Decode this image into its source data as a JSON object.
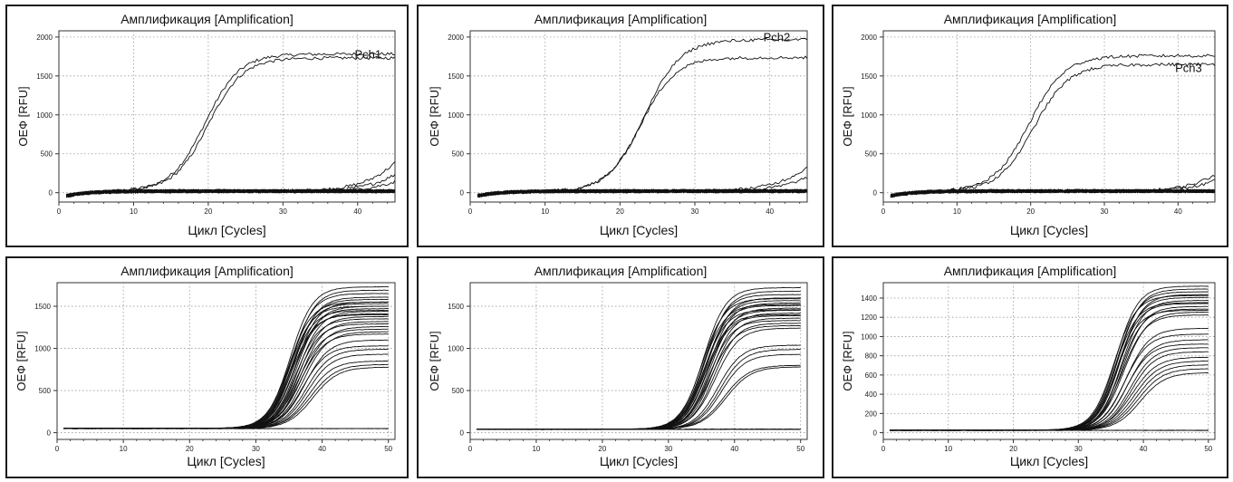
{
  "chart_data": [
    {
      "type": "line",
      "title": "Амплификация [Amplification]",
      "xlabel": "Цикл [Cycles]",
      "ylabel": "ОЕФ [RFU]",
      "xlim": [
        0,
        45
      ],
      "ylim": [
        -120,
        2080
      ],
      "xticks": [
        0,
        10,
        20,
        30,
        40
      ],
      "yticks": [
        0,
        500,
        1000,
        1500,
        2000
      ],
      "grid": true,
      "series_label": "Pch1",
      "curves": [
        {
          "plateau": 1760,
          "midpoint": 19.6,
          "slope": 2.3,
          "count": 1
        },
        {
          "plateau": 1710,
          "midpoint": 20.0,
          "slope": 2.3,
          "count": 1
        },
        {
          "plateau": 1200,
          "midpoint": 47.5,
          "slope": 3.0,
          "count": 1
        },
        {
          "plateau": 900,
          "midpoint": 48.5,
          "slope": 3.0,
          "count": 1
        },
        {
          "plateau": 600,
          "midpoint": 49.0,
          "slope": 3.0,
          "count": 1
        },
        {
          "plateau": 0,
          "midpoint": 50,
          "slope": 3,
          "count": 30
        }
      ],
      "baseline_noise": 40
    },
    {
      "type": "line",
      "title": "Амплификация [Amplification]",
      "xlabel": "Цикл [Cycles]",
      "ylabel": "ОЕФ [RFU]",
      "xlim": [
        0,
        45
      ],
      "ylim": [
        -120,
        2080
      ],
      "xticks": [
        0,
        10,
        20,
        30,
        40
      ],
      "yticks": [
        0,
        500,
        1000,
        1500,
        2000
      ],
      "grid": true,
      "series_label": "Pch2",
      "curves": [
        {
          "plateau": 1950,
          "midpoint": 23.3,
          "slope": 2.4,
          "count": 1
        },
        {
          "plateau": 1720,
          "midpoint": 22.8,
          "slope": 2.3,
          "count": 1
        },
        {
          "plateau": 800,
          "midpoint": 46.5,
          "slope": 3.0,
          "count": 1
        },
        {
          "plateau": 600,
          "midpoint": 47.5,
          "slope": 3.0,
          "count": 1
        },
        {
          "plateau": 0,
          "midpoint": 50,
          "slope": 3,
          "count": 30
        }
      ],
      "baseline_noise": 40
    },
    {
      "type": "line",
      "title": "Амплификация [Amplification]",
      "xlabel": "Цикл [Cycles]",
      "ylabel": "ОЕФ [RFU]",
      "xlim": [
        0,
        45
      ],
      "ylim": [
        -120,
        2080
      ],
      "xticks": [
        0,
        10,
        20,
        30,
        40
      ],
      "yticks": [
        0,
        500,
        1000,
        1500,
        2000
      ],
      "grid": true,
      "series_label": "Pch3",
      "curves": [
        {
          "plateau": 1740,
          "midpoint": 19.8,
          "slope": 2.4,
          "count": 1
        },
        {
          "plateau": 1630,
          "midpoint": 20.4,
          "slope": 2.4,
          "count": 1
        },
        {
          "plateau": 700,
          "midpoint": 47.5,
          "slope": 3.0,
          "count": 1
        },
        {
          "plateau": 500,
          "midpoint": 48.0,
          "slope": 3.0,
          "count": 1
        },
        {
          "plateau": 0,
          "midpoint": 50,
          "slope": 3,
          "count": 30
        }
      ],
      "baseline_noise": 40
    },
    {
      "type": "line",
      "title": "Амплификация [Amplification]",
      "xlabel": "Цикл [Cycles]",
      "ylabel": "ОЕФ [RFU]",
      "xlim": [
        0,
        51
      ],
      "ylim": [
        -80,
        1780
      ],
      "xticks": [
        0,
        10,
        20,
        30,
        40,
        50
      ],
      "yticks": [
        0,
        500,
        1000,
        1500
      ],
      "grid": true,
      "series_label": "",
      "curves": [
        {
          "plateau": 1680,
          "midpoint": 35.2,
          "slope": 1.7,
          "count": 1
        },
        {
          "plateau": 1640,
          "midpoint": 35.5,
          "slope": 1.7,
          "count": 1
        },
        {
          "plateau": 1600,
          "midpoint": 35.3,
          "slope": 1.7,
          "count": 1
        },
        {
          "plateau": 1560,
          "midpoint": 35.8,
          "slope": 1.7,
          "count": 1
        },
        {
          "plateau": 1530,
          "midpoint": 35.6,
          "slope": 1.7,
          "count": 1
        },
        {
          "plateau": 1500,
          "midpoint": 36.0,
          "slope": 1.7,
          "count": 1
        },
        {
          "plateau": 1480,
          "midpoint": 35.4,
          "slope": 1.7,
          "count": 1
        },
        {
          "plateau": 1450,
          "midpoint": 36.2,
          "slope": 1.7,
          "count": 1
        },
        {
          "plateau": 1420,
          "midpoint": 35.9,
          "slope": 1.7,
          "count": 1
        },
        {
          "plateau": 1390,
          "midpoint": 36.4,
          "slope": 1.7,
          "count": 1
        },
        {
          "plateau": 1360,
          "midpoint": 35.7,
          "slope": 1.7,
          "count": 1
        },
        {
          "plateau": 1330,
          "midpoint": 36.6,
          "slope": 1.7,
          "count": 1
        },
        {
          "plateau": 1300,
          "midpoint": 36.1,
          "slope": 1.7,
          "count": 1
        },
        {
          "plateau": 1270,
          "midpoint": 36.8,
          "slope": 1.7,
          "count": 1
        },
        {
          "plateau": 1240,
          "midpoint": 36.3,
          "slope": 1.7,
          "count": 1
        },
        {
          "plateau": 1210,
          "midpoint": 37.0,
          "slope": 1.8,
          "count": 1
        },
        {
          "plateau": 1180,
          "midpoint": 36.5,
          "slope": 1.8,
          "count": 1
        },
        {
          "plateau": 1150,
          "midpoint": 37.2,
          "slope": 1.8,
          "count": 1
        },
        {
          "plateau": 1120,
          "midpoint": 36.7,
          "slope": 1.8,
          "count": 1
        },
        {
          "plateau": 1050,
          "midpoint": 37.4,
          "slope": 1.8,
          "count": 1
        },
        {
          "plateau": 980,
          "midpoint": 37.1,
          "slope": 1.8,
          "count": 1
        },
        {
          "plateau": 940,
          "midpoint": 37.6,
          "slope": 1.8,
          "count": 1
        },
        {
          "plateau": 880,
          "midpoint": 37.8,
          "slope": 1.8,
          "count": 1
        },
        {
          "plateau": 800,
          "midpoint": 38.0,
          "slope": 1.8,
          "count": 1
        },
        {
          "plateau": 760,
          "midpoint": 38.3,
          "slope": 1.9,
          "count": 1
        },
        {
          "plateau": 730,
          "midpoint": 38.6,
          "slope": 1.9,
          "count": 1
        },
        {
          "plateau": 1500,
          "midpoint": 35.0,
          "slope": 1.7,
          "count": 1
        },
        {
          "plateau": 1450,
          "midpoint": 35.1,
          "slope": 1.7,
          "count": 1
        },
        {
          "plateau": 1400,
          "midpoint": 35.3,
          "slope": 1.7,
          "count": 1
        },
        {
          "plateau": 1350,
          "midpoint": 35.4,
          "slope": 1.7,
          "count": 1
        },
        {
          "plateau": 0,
          "midpoint": 60,
          "slope": 3,
          "count": 3
        }
      ],
      "baseline_noise": 4,
      "baseline_offset": 50
    },
    {
      "type": "line",
      "title": "Амплификация [Amplification]",
      "xlabel": "Цикл [Cycles]",
      "ylabel": "ОЕФ [RFU]",
      "xlim": [
        0,
        51
      ],
      "ylim": [
        -80,
        1780
      ],
      "xticks": [
        0,
        10,
        20,
        30,
        40,
        50
      ],
      "yticks": [
        0,
        500,
        1000,
        1500
      ],
      "grid": true,
      "series_label": "",
      "curves": [
        {
          "plateau": 1680,
          "midpoint": 35.3,
          "slope": 1.7,
          "count": 1
        },
        {
          "plateau": 1640,
          "midpoint": 35.6,
          "slope": 1.7,
          "count": 1
        },
        {
          "plateau": 1600,
          "midpoint": 35.4,
          "slope": 1.7,
          "count": 1
        },
        {
          "plateau": 1560,
          "midpoint": 35.9,
          "slope": 1.7,
          "count": 1
        },
        {
          "plateau": 1530,
          "midpoint": 35.7,
          "slope": 1.7,
          "count": 1
        },
        {
          "plateau": 1500,
          "midpoint": 36.1,
          "slope": 1.7,
          "count": 1
        },
        {
          "plateau": 1470,
          "midpoint": 35.5,
          "slope": 1.7,
          "count": 1
        },
        {
          "plateau": 1440,
          "midpoint": 36.3,
          "slope": 1.7,
          "count": 1
        },
        {
          "plateau": 1410,
          "midpoint": 36.0,
          "slope": 1.7,
          "count": 1
        },
        {
          "plateau": 1380,
          "midpoint": 36.5,
          "slope": 1.7,
          "count": 1
        },
        {
          "plateau": 1350,
          "midpoint": 35.8,
          "slope": 1.7,
          "count": 1
        },
        {
          "plateau": 1320,
          "midpoint": 36.7,
          "slope": 1.7,
          "count": 1
        },
        {
          "plateau": 1290,
          "midpoint": 36.2,
          "slope": 1.7,
          "count": 1
        },
        {
          "plateau": 1260,
          "midpoint": 36.9,
          "slope": 1.7,
          "count": 1
        },
        {
          "plateau": 1230,
          "midpoint": 36.4,
          "slope": 1.8,
          "count": 1
        },
        {
          "plateau": 1200,
          "midpoint": 37.1,
          "slope": 1.8,
          "count": 1
        },
        {
          "plateau": 1000,
          "midpoint": 37.5,
          "slope": 1.8,
          "count": 1
        },
        {
          "plateau": 950,
          "midpoint": 37.8,
          "slope": 1.8,
          "count": 1
        },
        {
          "plateau": 890,
          "midpoint": 38.0,
          "slope": 1.8,
          "count": 1
        },
        {
          "plateau": 760,
          "midpoint": 38.4,
          "slope": 1.9,
          "count": 1
        },
        {
          "plateau": 740,
          "midpoint": 38.7,
          "slope": 1.9,
          "count": 1
        },
        {
          "plateau": 1550,
          "midpoint": 35.1,
          "slope": 1.7,
          "count": 1
        },
        {
          "plateau": 1480,
          "midpoint": 35.2,
          "slope": 1.7,
          "count": 1
        },
        {
          "plateau": 1420,
          "midpoint": 35.4,
          "slope": 1.7,
          "count": 1
        },
        {
          "plateau": 1360,
          "midpoint": 35.6,
          "slope": 1.7,
          "count": 1
        },
        {
          "plateau": 0,
          "midpoint": 60,
          "slope": 3,
          "count": 3
        }
      ],
      "baseline_noise": 4,
      "baseline_offset": 40
    },
    {
      "type": "line",
      "title": "Амплификация [Amplification]",
      "xlabel": "Цикл [Cycles]",
      "ylabel": "ОЕФ [RFU]",
      "xlim": [
        0,
        51
      ],
      "ylim": [
        -70,
        1560
      ],
      "xticks": [
        0,
        10,
        20,
        30,
        40,
        50
      ],
      "yticks": [
        0,
        200,
        400,
        600,
        800,
        1000,
        1200,
        1400
      ],
      "grid": true,
      "series_label": "",
      "curves": [
        {
          "plateau": 1500,
          "midpoint": 35.8,
          "slope": 1.7,
          "count": 1
        },
        {
          "plateau": 1470,
          "midpoint": 36.1,
          "slope": 1.7,
          "count": 1
        },
        {
          "plateau": 1440,
          "midpoint": 35.9,
          "slope": 1.7,
          "count": 1
        },
        {
          "plateau": 1410,
          "midpoint": 36.4,
          "slope": 1.7,
          "count": 1
        },
        {
          "plateau": 1380,
          "midpoint": 36.2,
          "slope": 1.7,
          "count": 1
        },
        {
          "plateau": 1350,
          "midpoint": 36.6,
          "slope": 1.7,
          "count": 1
        },
        {
          "plateau": 1320,
          "midpoint": 36.0,
          "slope": 1.7,
          "count": 1
        },
        {
          "plateau": 1290,
          "midpoint": 36.8,
          "slope": 1.7,
          "count": 1
        },
        {
          "plateau": 1260,
          "midpoint": 36.5,
          "slope": 1.7,
          "count": 1
        },
        {
          "plateau": 1230,
          "midpoint": 37.0,
          "slope": 1.8,
          "count": 1
        },
        {
          "plateau": 1200,
          "midpoint": 36.7,
          "slope": 1.8,
          "count": 1
        },
        {
          "plateau": 1060,
          "midpoint": 37.3,
          "slope": 1.8,
          "count": 1
        },
        {
          "plateau": 1000,
          "midpoint": 37.1,
          "slope": 1.8,
          "count": 1
        },
        {
          "plateau": 940,
          "midpoint": 37.6,
          "slope": 1.8,
          "count": 1
        },
        {
          "plateau": 900,
          "midpoint": 37.4,
          "slope": 1.8,
          "count": 1
        },
        {
          "plateau": 860,
          "midpoint": 37.9,
          "slope": 1.8,
          "count": 1
        },
        {
          "plateau": 820,
          "midpoint": 38.1,
          "slope": 1.8,
          "count": 1
        },
        {
          "plateau": 760,
          "midpoint": 38.3,
          "slope": 1.9,
          "count": 1
        },
        {
          "plateau": 720,
          "midpoint": 38.6,
          "slope": 1.9,
          "count": 1
        },
        {
          "plateau": 680,
          "midpoint": 38.9,
          "slope": 1.9,
          "count": 1
        },
        {
          "plateau": 640,
          "midpoint": 39.2,
          "slope": 1.9,
          "count": 1
        },
        {
          "plateau": 600,
          "midpoint": 39.5,
          "slope": 1.9,
          "count": 1
        },
        {
          "plateau": 1400,
          "midpoint": 35.5,
          "slope": 1.7,
          "count": 1
        },
        {
          "plateau": 1330,
          "midpoint": 35.7,
          "slope": 1.7,
          "count": 1
        },
        {
          "plateau": 1250,
          "midpoint": 35.9,
          "slope": 1.7,
          "count": 1
        },
        {
          "plateau": 0,
          "midpoint": 60,
          "slope": 3,
          "count": 3
        }
      ],
      "baseline_noise": 3,
      "baseline_offset": 25
    }
  ]
}
